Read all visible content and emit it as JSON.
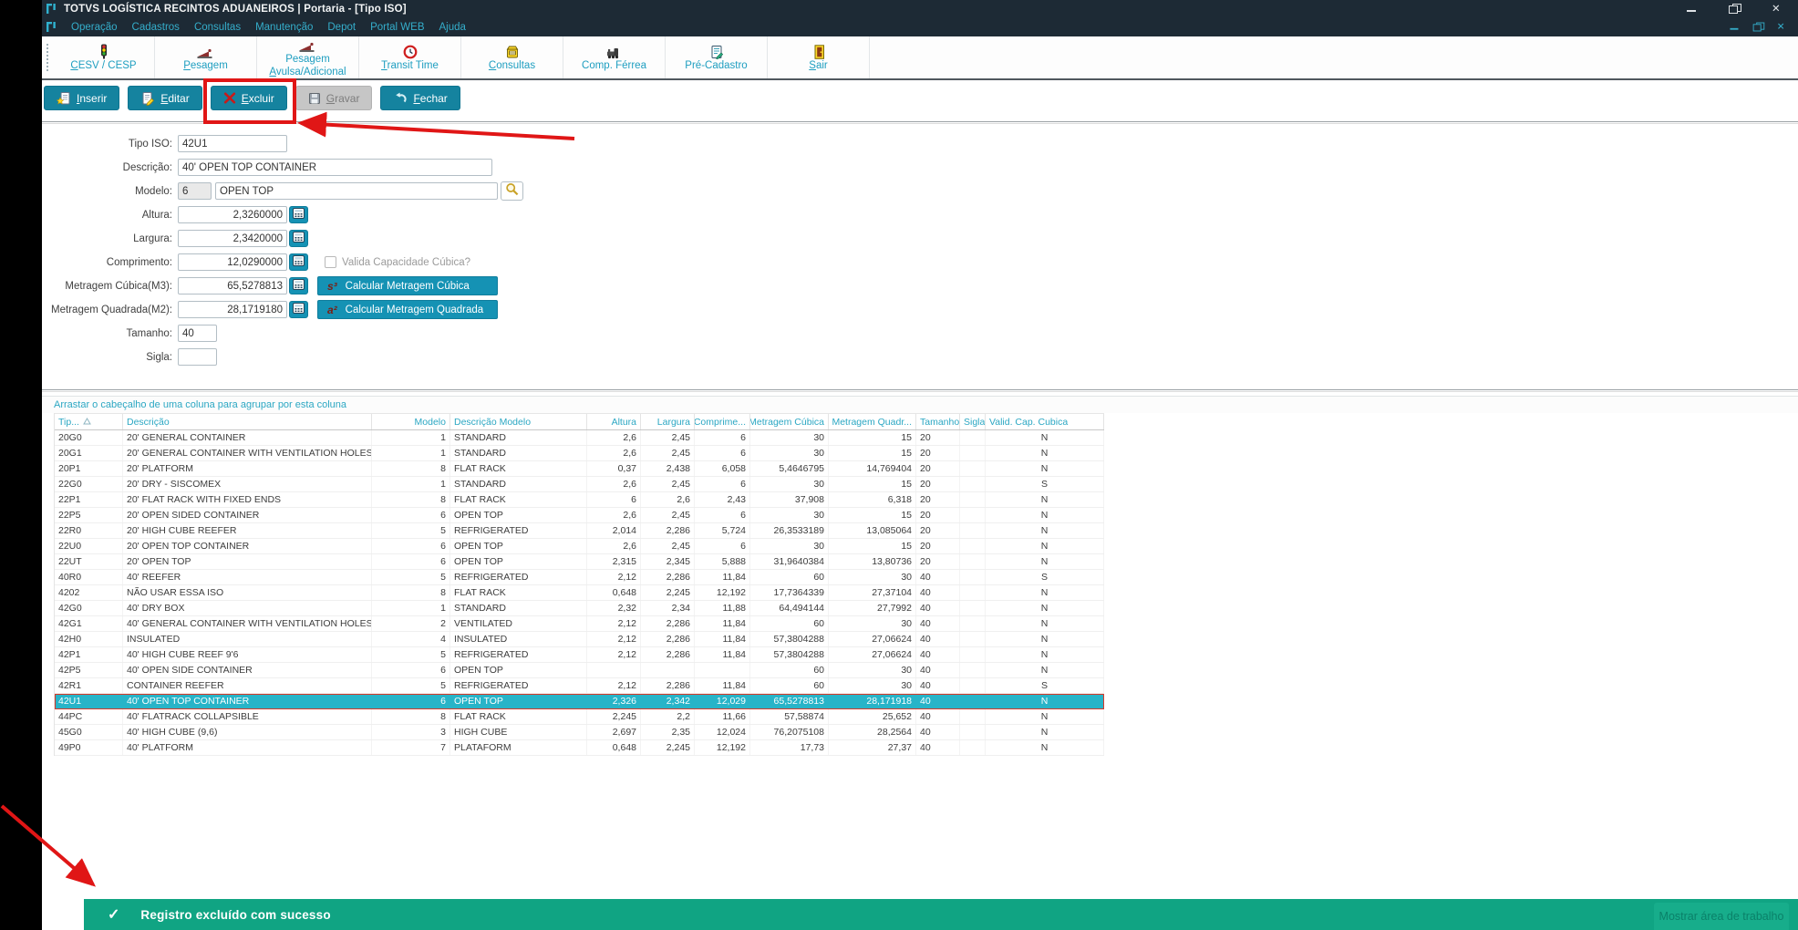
{
  "window": {
    "title": "TOTVS LOGÍSTICA RECINTOS ADUANEIROS | Portaria - [Tipo ISO]",
    "controls": [
      "minimize",
      "restore",
      "close"
    ]
  },
  "menubar": {
    "items": [
      "Operação",
      "Cadastros",
      "Consultas",
      "Manutenção",
      "Depot",
      "Portal WEB",
      "Ajuda"
    ],
    "mdi_controls": [
      "minimize",
      "restore",
      "close"
    ]
  },
  "toolbar": {
    "items": [
      {
        "label": "CESV / CESP",
        "icon": "traffic-light-icon",
        "accel": "label"
      },
      {
        "label": "Pesagem",
        "icon": "weighbridge-icon",
        "accel": "label"
      },
      {
        "label": "Pesagem",
        "label2": "Avulsa/Adicional",
        "icon": "weighbridge-icon",
        "accel": "label2"
      },
      {
        "label": "Transit Time",
        "icon": "clock-icon",
        "accel": "label"
      },
      {
        "label": "Consultas",
        "icon": "card-file-icon",
        "accel": "label"
      },
      {
        "label": "Comp. Férrea",
        "icon": "train-icon"
      },
      {
        "label": "Pré-Cadastro",
        "icon": "registration-form-icon"
      },
      {
        "label": "Sair",
        "icon": "exit-door-icon",
        "accel": "label"
      }
    ]
  },
  "actions": {
    "buttons": [
      {
        "label": "Inserir",
        "icon": "new-record-icon",
        "enabled": true
      },
      {
        "label": "Editar",
        "icon": "edit-record-icon",
        "enabled": true
      },
      {
        "label": "Excluir",
        "icon": "delete-x-icon",
        "enabled": true,
        "annotated": true
      },
      {
        "label": "Gravar",
        "icon": "save-disk-icon",
        "enabled": false
      },
      {
        "label": "Fechar",
        "icon": "close-undo-icon",
        "enabled": true
      }
    ]
  },
  "form": {
    "tipo_iso": {
      "label": "Tipo ISO:",
      "value": "42U1"
    },
    "descricao": {
      "label": "Descrição:",
      "value": "40' OPEN TOP CONTAINER"
    },
    "modelo": {
      "label": "Modelo:",
      "code": "6",
      "value": "OPEN TOP"
    },
    "altura": {
      "label": "Altura:",
      "value": "2,3260000"
    },
    "largura": {
      "label": "Largura:",
      "value": "2,3420000"
    },
    "comprimento": {
      "label": "Comprimento:",
      "value": "12,0290000"
    },
    "metragem_cubica": {
      "label": "Metragem Cúbica(M3):",
      "value": "65,5278813"
    },
    "metragem_quadrada": {
      "label": "Metragem Quadrada(M2):",
      "value": "28,1719180"
    },
    "tamanho": {
      "label": "Tamanho:",
      "value": "40"
    },
    "sigla": {
      "label": "Sigla:",
      "value": ""
    },
    "valida_checkbox": {
      "label": "Valida Capacidade Cúbica?",
      "checked": false
    },
    "calc_cubica_button": {
      "icon_text": "s³",
      "label": "Calcular Metragem Cúbica"
    },
    "calc_quadrada_button": {
      "icon_text": "a²",
      "label": "Calcular Metragem Quadrada"
    }
  },
  "grid": {
    "group_hint": "Arrastar o cabeçalho de uma coluna para agrupar por esta coluna",
    "columns": [
      "Tip...",
      "Descrição",
      "Modelo",
      "Descrição Modelo",
      "Altura",
      "Largura",
      "Comprime...",
      "Metragem Cúbica",
      "Metragem Quadr...",
      "Tamanho",
      "Sigla",
      "Valid. Cap. Cubica"
    ],
    "sorted_column_index": 0,
    "sort_direction": "asc",
    "selected_row_index": 17,
    "rows": [
      {
        "cells": [
          "20G0",
          "20' GENERAL CONTAINER",
          "1",
          "STANDARD",
          "2,6",
          "2,45",
          "6",
          "30",
          "15",
          "20",
          "",
          "N"
        ]
      },
      {
        "cells": [
          "20G1",
          "20' GENERAL CONTAINER WITH VENTILATION HOLES",
          "1",
          "STANDARD",
          "2,6",
          "2,45",
          "6",
          "30",
          "15",
          "20",
          "",
          "N"
        ]
      },
      {
        "cells": [
          "20P1",
          "20' PLATFORM",
          "8",
          "FLAT RACK",
          "0,37",
          "2,438",
          "6,058",
          "5,4646795",
          "14,769404",
          "20",
          "",
          "N"
        ]
      },
      {
        "cells": [
          "22G0",
          "20' DRY - SISCOMEX",
          "1",
          "STANDARD",
          "2,6",
          "2,45",
          "6",
          "30",
          "15",
          "20",
          "",
          "S"
        ]
      },
      {
        "cells": [
          "22P1",
          "20' FLAT RACK WITH FIXED ENDS",
          "8",
          "FLAT RACK",
          "6",
          "2,6",
          "2,43",
          "37,908",
          "6,318",
          "20",
          "",
          "N"
        ]
      },
      {
        "cells": [
          "22P5",
          "20' OPEN SIDED CONTAINER",
          "6",
          "OPEN TOP",
          "2,6",
          "2,45",
          "6",
          "30",
          "15",
          "20",
          "",
          "N"
        ]
      },
      {
        "cells": [
          "22R0",
          "20' HIGH CUBE REEFER",
          "5",
          "REFRIGERATED",
          "2,014",
          "2,286",
          "5,724",
          "26,3533189",
          "13,085064",
          "20",
          "",
          "N"
        ]
      },
      {
        "cells": [
          "22U0",
          "20' OPEN TOP CONTAINER",
          "6",
          "OPEN TOP",
          "2,6",
          "2,45",
          "6",
          "30",
          "15",
          "20",
          "",
          "N"
        ]
      },
      {
        "cells": [
          "22UT",
          "20' OPEN TOP",
          "6",
          "OPEN TOP",
          "2,315",
          "2,345",
          "5,888",
          "31,9640384",
          "13,80736",
          "20",
          "",
          "N"
        ]
      },
      {
        "cells": [
          "40R0",
          "40' REEFER",
          "5",
          "REFRIGERATED",
          "2,12",
          "2,286",
          "11,84",
          "60",
          "30",
          "40",
          "",
          "S"
        ]
      },
      {
        "cells": [
          "4202",
          "NÃO USAR ESSA ISO",
          "8",
          "FLAT RACK",
          "0,648",
          "2,245",
          "12,192",
          "17,7364339",
          "27,37104",
          "40",
          "",
          "N"
        ]
      },
      {
        "cells": [
          "42G0",
          "40' DRY BOX",
          "1",
          "STANDARD",
          "2,32",
          "2,34",
          "11,88",
          "64,494144",
          "27,7992",
          "40",
          "",
          "N"
        ]
      },
      {
        "cells": [
          "42G1",
          "40' GENERAL CONTAINER WITH VENTILATION HOLES",
          "2",
          "VENTILATED",
          "2,12",
          "2,286",
          "11,84",
          "60",
          "30",
          "40",
          "",
          "N"
        ]
      },
      {
        "cells": [
          "42H0",
          "INSULATED",
          "4",
          "INSULATED",
          "2,12",
          "2,286",
          "11,84",
          "57,3804288",
          "27,06624",
          "40",
          "",
          "N"
        ]
      },
      {
        "cells": [
          "42P1",
          "40' HIGH CUBE REEF 9'6",
          "5",
          "REFRIGERATED",
          "2,12",
          "2,286",
          "11,84",
          "57,3804288",
          "27,06624",
          "40",
          "",
          "N"
        ]
      },
      {
        "cells": [
          "42P5",
          "40' OPEN SIDE CONTAINER",
          "6",
          "OPEN TOP",
          "",
          "",
          "",
          "60",
          "30",
          "40",
          "",
          "N"
        ]
      },
      {
        "cells": [
          "42R1",
          "CONTAINER REEFER",
          "5",
          "REFRIGERATED",
          "2,12",
          "2,286",
          "11,84",
          "60",
          "30",
          "40",
          "",
          "S"
        ]
      },
      {
        "cells": [
          "42U1",
          "40' OPEN TOP CONTAINER",
          "6",
          "OPEN TOP",
          "2,326",
          "2,342",
          "12,029",
          "65,5278813",
          "28,171918",
          "40",
          "",
          "N"
        ]
      },
      {
        "cells": [
          "44PC",
          "40' FLATRACK COLLAPSIBLE",
          "8",
          "FLAT RACK",
          "2,245",
          "2,2",
          "11,66",
          "57,58874",
          "25,652",
          "40",
          "",
          "N"
        ]
      },
      {
        "cells": [
          "45G0",
          "40' HIGH CUBE (9,6)",
          "3",
          "HIGH CUBE",
          "2,697",
          "2,35",
          "12,024",
          "76,2075108",
          "28,2564",
          "40",
          "",
          "N"
        ]
      },
      {
        "cells": [
          "49P0",
          "40' PLATFORM",
          "7",
          "PLATAFORM",
          "0,648",
          "2,245",
          "12,192",
          "17,73",
          "27,37",
          "40",
          "",
          "N"
        ]
      }
    ]
  },
  "statusbar": {
    "icon": "check-icon",
    "message": "Registro excluído com sucesso",
    "desktop_tooltip": "Mostrar área de trabalho"
  },
  "colors": {
    "titlebar_bg": "#1d2a35",
    "accent_cyan": "#35aecb",
    "button_teal": "#15839f",
    "selected_row": "#28b4c8",
    "success_green": "#10a483",
    "annotation_red": "#e01616"
  }
}
